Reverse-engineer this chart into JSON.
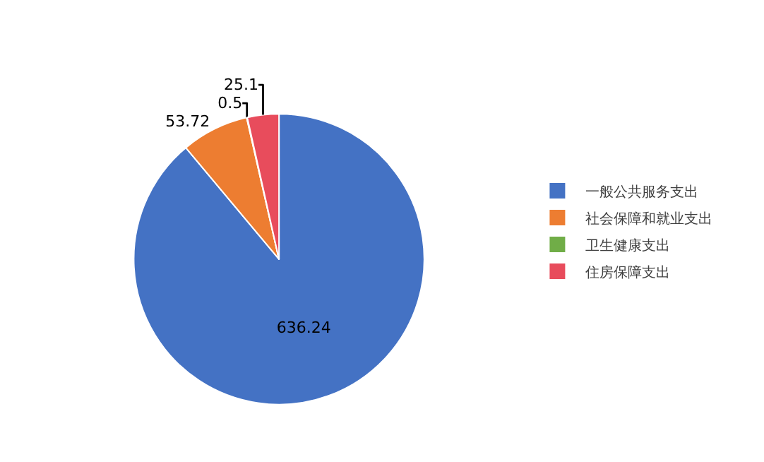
{
  "chart_data": {
    "type": "pie",
    "categories": [
      "一般公共服务支出",
      "社会保障和就业支出",
      "卫生健康支出",
      "住房保障支出"
    ],
    "values": [
      636.24,
      53.72,
      0.5,
      25.1
    ],
    "colors": [
      "#4472c4",
      "#ed7d31",
      "#70ad47",
      "#e84c5c"
    ],
    "data_labels": true,
    "legend": "right"
  }
}
